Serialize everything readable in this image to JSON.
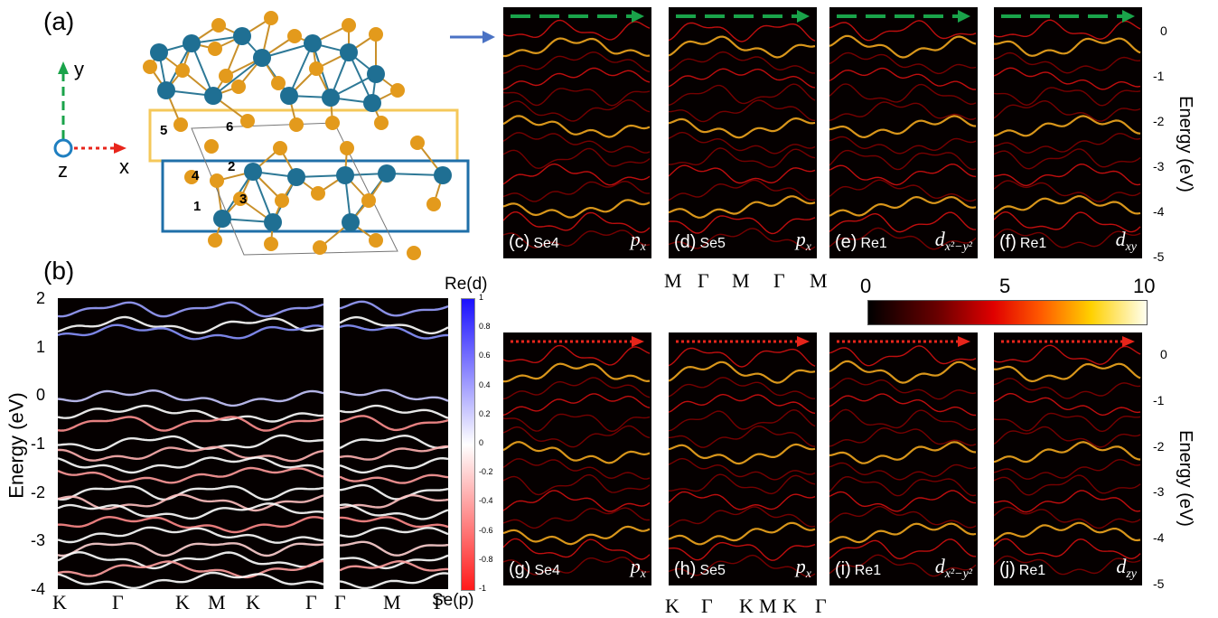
{
  "labels": {
    "a": "(a)",
    "b": "(b)",
    "axis_y": "y",
    "axis_x": "x",
    "axis_z": "z",
    "atoms": [
      "1",
      "2",
      "3",
      "4",
      "5",
      "6"
    ]
  },
  "panel_b": {
    "ylabel": "Energy (eV)",
    "yticks": [
      "2",
      "1",
      "0",
      "-1",
      "-2",
      "-3",
      "-4"
    ],
    "xticks_left": [
      "K",
      "Γ",
      "K",
      "M",
      "K",
      "Γ"
    ],
    "xticks_right": [
      "Γ",
      "M",
      "Γ"
    ],
    "colorbar_top": "Re(d)",
    "colorbar_bottom": "Se(p)",
    "colorbar_ticks": [
      "1",
      "0.8",
      "0.6",
      "0.4",
      "0.2",
      "0",
      "-0.2",
      "-0.4",
      "-0.6",
      "-0.8",
      "-1"
    ]
  },
  "spectral": {
    "ylabel": "Energy (eV)",
    "yticks": [
      "0",
      "-1",
      "-2",
      "-3",
      "-4",
      "-5"
    ],
    "xticks_top": [
      "M",
      "Γ",
      "M",
      "Γ",
      "M"
    ],
    "xticks_bottom": [
      "K",
      "Γ",
      "K",
      "M",
      "K",
      "Γ"
    ],
    "colorbar_ticks": [
      "0",
      "5",
      "10"
    ],
    "panels_top": [
      {
        "tag": "(c)",
        "atom": "Se4",
        "orb": "p",
        "sub": "x"
      },
      {
        "tag": "(d)",
        "atom": "Se5",
        "orb": "p",
        "sub": "x"
      },
      {
        "tag": "(e)",
        "atom": "Re1",
        "orb": "d",
        "sub": "x²−y²"
      },
      {
        "tag": "(f)",
        "atom": "Re1",
        "orb": "d",
        "sub": "xy"
      }
    ],
    "panels_bottom": [
      {
        "tag": "(g)",
        "atom": "Se4",
        "orb": "p",
        "sub": "x"
      },
      {
        "tag": "(h)",
        "atom": "Se5",
        "orb": "p",
        "sub": "x"
      },
      {
        "tag": "(i)",
        "atom": "Re1",
        "orb": "d",
        "sub": "x²−y²"
      },
      {
        "tag": "(j)",
        "atom": "Re1",
        "orb": "d",
        "sub": "zy"
      }
    ]
  },
  "colors": {
    "se_atom": "#e39a1c",
    "re_atom": "#1f6f93",
    "yellow_box": "#f5c85a",
    "blue_box": "#1f6fa8",
    "green_arrow": "#1aa34a",
    "red_arrow": "#e8251b",
    "pointer_arrow": "#4a72c4"
  }
}
